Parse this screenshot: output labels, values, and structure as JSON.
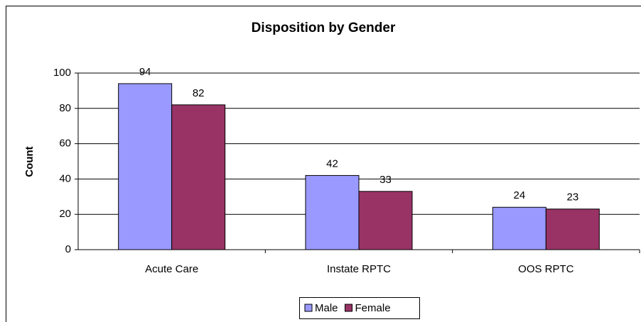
{
  "chart_data": {
    "type": "bar",
    "title": "Disposition by Gender",
    "y_label": "Count",
    "categories": [
      "Acute Care",
      "Instate RPTC",
      "OOS RPTC"
    ],
    "series": [
      {
        "name": "Male",
        "color": "#9999ff",
        "values": [
          94,
          42,
          24
        ]
      },
      {
        "name": "Female",
        "color": "#993366",
        "values": [
          82,
          33,
          23
        ]
      }
    ],
    "ylim": [
      0,
      100
    ],
    "yticks": [
      0,
      20,
      40,
      60,
      80,
      100
    ],
    "grid": true,
    "legend": "bottom"
  }
}
